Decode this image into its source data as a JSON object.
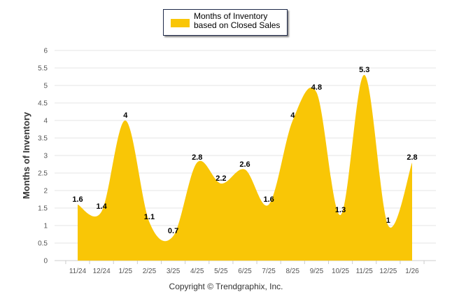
{
  "chart_data": {
    "type": "area",
    "title": "",
    "legend": {
      "label": "Months of Inventory based on Closed Sales",
      "placement": "top-center"
    },
    "xlabel": "",
    "ylabel": "Months of Inventory",
    "categories": [
      "11/24",
      "12/24",
      "1/25",
      "2/25",
      "3/25",
      "4/25",
      "5/25",
      "6/25",
      "7/25",
      "8/25",
      "9/25",
      "10/25",
      "11/25",
      "12/25",
      "1/26"
    ],
    "series": [
      {
        "name": "Months of Inventory based on Closed Sales",
        "values": [
          1.6,
          1.4,
          4,
          1.1,
          0.7,
          2.8,
          2.2,
          2.6,
          1.6,
          4,
          4.8,
          1.3,
          5.3,
          1,
          2.8
        ]
      }
    ],
    "ylim": [
      0,
      6
    ],
    "yticks": [
      "0",
      "0.5",
      "1",
      "1.5",
      "2",
      "2.5",
      "3",
      "3.5",
      "4",
      "4.5",
      "5",
      "5.5",
      "6"
    ],
    "grid": true,
    "color": "#F9C606"
  },
  "footer": "Copyright © Trendgraphix, Inc."
}
